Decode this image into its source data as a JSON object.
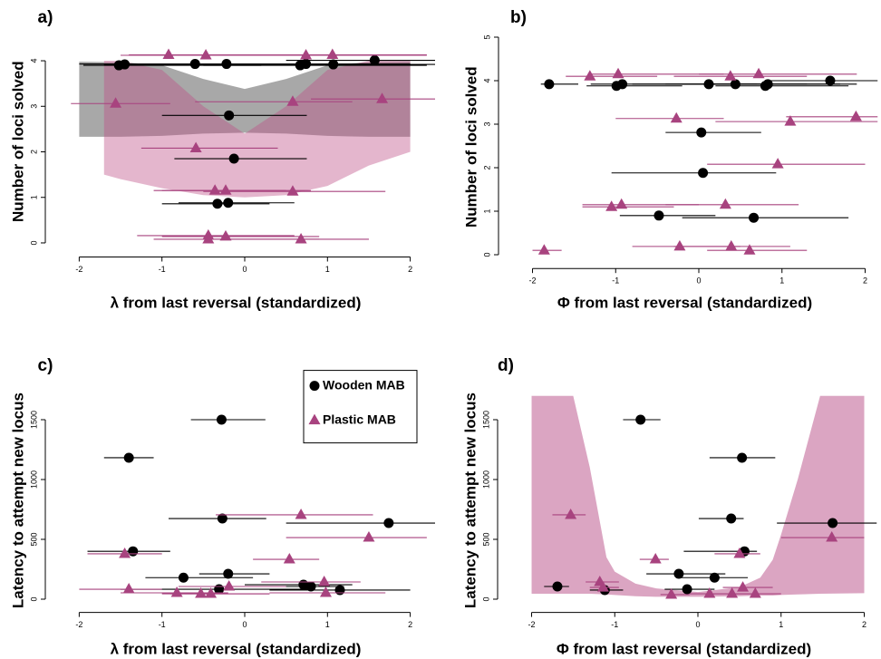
{
  "chart_data": [
    {
      "type": "scatter",
      "label": "a)",
      "xlabel": "λ from last reversal (standardized)",
      "ylabel": "Number of loci solved",
      "xlim": [
        -2.3,
        2.3
      ],
      "ylim": [
        -0.15,
        4.6
      ],
      "xticks": [
        -2,
        -1,
        0,
        1,
        2
      ],
      "yticks": [
        0,
        1,
        2,
        3,
        4
      ],
      "bands": [
        {
          "color": "rgba(110,110,110,0.6)",
          "x": [
            -2,
            -1.5,
            -1,
            -0.5,
            0,
            0.5,
            1,
            1.5,
            2
          ],
          "upper": [
            3.98,
            3.97,
            3.9,
            3.6,
            3.38,
            3.6,
            3.9,
            3.97,
            3.98
          ],
          "lower": [
            2.33,
            2.33,
            2.35,
            2.4,
            2.42,
            2.4,
            2.35,
            2.33,
            2.33
          ]
        },
        {
          "color": "rgba(190,80,135,0.42)",
          "x": [
            -1.7,
            -1.5,
            -1,
            -0.5,
            0,
            0.5,
            1,
            1.5,
            2
          ],
          "upper": [
            4.0,
            4.0,
            3.8,
            3.0,
            2.4,
            3.0,
            3.8,
            4.0,
            4.0
          ],
          "lower": [
            1.5,
            1.4,
            1.2,
            1.05,
            1.0,
            1.05,
            1.25,
            1.7,
            2.0
          ]
        }
      ],
      "series": [
        {
          "color": "#000000",
          "marker": "circle",
          "x": [
            -1.52,
            -1.45,
            -0.6,
            -0.22,
            0.67,
            0.74,
            1.07,
            1.57,
            -0.19,
            -0.13,
            -0.33,
            -0.2
          ],
          "values": [
            3.9,
            3.92,
            3.93,
            3.93,
            3.9,
            3.93,
            3.92,
            4.01,
            2.8,
            1.85,
            0.86,
            0.88
          ],
          "xmin": [
            -1.95,
            -1.7,
            -2.0,
            -1.3,
            -0.5,
            -0.3,
            0.2,
            0.5,
            -1.0,
            -0.85,
            -1.0,
            -0.8
          ],
          "xmax": [
            0.2,
            0.8,
            0.9,
            1.7,
            2.2,
            2.0,
            2.3,
            2.3,
            0.75,
            0.75,
            0.3,
            0.6
          ]
        },
        {
          "color": "#a8437f",
          "marker": "triangle",
          "x": [
            -0.92,
            -0.47,
            0.74,
            1.06,
            -1.56,
            0.58,
            1.66,
            -0.59,
            -0.36,
            -0.23,
            0.58,
            -0.44,
            -0.44,
            -0.23,
            0.68
          ],
          "values": [
            4.13,
            4.12,
            4.12,
            4.13,
            3.06,
            3.1,
            3.16,
            2.08,
            1.15,
            1.15,
            1.13,
            0.16,
            0.08,
            0.14,
            0.08
          ],
          "xmin": [
            -1.4,
            -1.5,
            -0.8,
            -0.3,
            -2.1,
            -0.6,
            0.8,
            -1.25,
            -1.1,
            -1.0,
            -0.5,
            -1.3,
            -1.1,
            -1.0,
            -0.4
          ],
          "xmax": [
            2.1,
            2.0,
            2.2,
            2.2,
            -0.9,
            1.3,
            2.3,
            0.4,
            0.5,
            0.8,
            1.7,
            0.6,
            0.9,
            0.9,
            1.5
          ]
        }
      ]
    },
    {
      "type": "scatter",
      "label": "b)",
      "xlabel": "Φ from last reversal (standardized)",
      "ylabel": "Number of loci solved",
      "xlim": [
        -2.3,
        2.18
      ],
      "ylim": [
        -0.15,
        5.1
      ],
      "xticks": [
        -2,
        -1,
        0,
        1,
        2
      ],
      "yticks": [
        0,
        1,
        2,
        3,
        4,
        5
      ],
      "series": [
        {
          "color": "#000000",
          "marker": "circle",
          "x": [
            -1.8,
            -0.99,
            -0.92,
            0.12,
            0.44,
            0.8,
            0.83,
            1.58,
            0.03,
            0.05,
            -0.48,
            0.66
          ],
          "values": [
            3.92,
            3.88,
            3.92,
            3.92,
            3.92,
            3.88,
            3.92,
            4.0,
            2.81,
            1.88,
            0.9,
            0.85
          ],
          "xmin": [
            -1.9,
            -1.35,
            -1.3,
            -0.8,
            -0.4,
            0.2,
            0.1,
            0.8,
            -0.4,
            -1.05,
            -0.95,
            -0.2
          ],
          "xmax": [
            -1.45,
            -0.2,
            0.7,
            1.3,
            1.7,
            1.8,
            1.9,
            2.15,
            0.75,
            0.93,
            0.2,
            1.8
          ]
        },
        {
          "color": "#a8437f",
          "marker": "triangle",
          "x": [
            -1.31,
            -0.97,
            0.38,
            0.72,
            -0.27,
            1.1,
            1.89,
            0.95,
            -1.05,
            -0.93,
            0.32,
            -1.86,
            -0.23,
            0.39,
            0.61
          ],
          "values": [
            4.1,
            4.15,
            4.1,
            4.15,
            3.13,
            3.06,
            3.17,
            2.08,
            1.1,
            1.15,
            1.15,
            0.1,
            0.19,
            0.19,
            0.1
          ],
          "xmin": [
            -1.6,
            -1.3,
            -0.3,
            0.0,
            -1.0,
            0.2,
            1.05,
            0.1,
            -1.4,
            -1.4,
            -0.4,
            -2.0,
            -0.8,
            -0.3,
            0.1
          ],
          "xmax": [
            -0.5,
            0.3,
            1.3,
            1.9,
            0.3,
            2.15,
            2.15,
            2.0,
            -0.3,
            0.0,
            1.2,
            -1.65,
            0.5,
            1.1,
            1.3
          ]
        }
      ]
    },
    {
      "type": "scatter",
      "label": "c)",
      "xlabel": "λ from last reversal (standardized)",
      "ylabel": "Latency to attempt new locus",
      "xlim": [
        -2.3,
        2.3
      ],
      "ylim": [
        -50,
        1700
      ],
      "xticks": [
        -2,
        -1,
        0,
        1,
        2
      ],
      "yticks": [
        0,
        500,
        1000,
        1500
      ],
      "legend": "topright",
      "series": [
        {
          "name": "Wooden MAB",
          "color": "#000000",
          "marker": "circle",
          "x": [
            -0.28,
            -1.4,
            -0.27,
            1.74,
            -1.35,
            -0.74,
            -0.2,
            -0.31,
            0.71,
            0.8,
            1.15
          ],
          "values": [
            1500,
            1182,
            674,
            636,
            400,
            180,
            212,
            83,
            121,
            106,
            76
          ],
          "xmin": [
            -0.65,
            -1.7,
            -0.92,
            0.5,
            -1.9,
            -1.2,
            -0.55,
            -1.5,
            0.0,
            -0.05,
            0.3
          ],
          "xmax": [
            0.25,
            -1.1,
            0.26,
            2.3,
            -0.9,
            0.1,
            0.3,
            0.8,
            1.3,
            1.2,
            2.0
          ]
        },
        {
          "name": "Plastic MAB",
          "color": "#a8437f",
          "marker": "triangle",
          "x": [
            0.68,
            1.5,
            0.54,
            -1.45,
            -1.4,
            -0.82,
            -0.53,
            -0.41,
            -0.19,
            0.96,
            0.98
          ],
          "values": [
            705,
            515,
            333,
            379,
            83,
            53,
            45,
            45,
            106,
            144,
            53
          ],
          "xmin": [
            -0.35,
            0.5,
            0.1,
            -1.9,
            -2.0,
            -1.5,
            -1.0,
            -0.9,
            -0.8,
            0.2,
            0.3
          ],
          "xmax": [
            1.55,
            2.2,
            0.9,
            -1.0,
            -1.0,
            -0.2,
            0.3,
            0.3,
            0.5,
            1.4,
            1.7
          ]
        }
      ]
    },
    {
      "type": "scatter",
      "label": "d)",
      "xlabel": "Φ from last reversal (standardized)",
      "ylabel": "Latency to attempt new locus",
      "xlim": [
        -2.3,
        2.18
      ],
      "ylim": [
        -50,
        1700
      ],
      "xticks": [
        -2,
        -1,
        0,
        1,
        2
      ],
      "yticks": [
        0,
        500,
        1000,
        1500
      ],
      "bands": [
        {
          "color": "#dba5c2",
          "x": [
            -2,
            -1.5,
            -1.3,
            -1.1,
            -1,
            -0.75,
            -0.5,
            0,
            0.5,
            0.75,
            0.9,
            1,
            1.2,
            1.47,
            2
          ],
          "upper": [
            1700,
            1700,
            1100,
            350,
            230,
            130,
            90,
            60,
            100,
            180,
            330,
            540,
            1000,
            1700,
            1700
          ],
          "lower": [
            45,
            45,
            45,
            40,
            35,
            25,
            20,
            20,
            25,
            30,
            30,
            35,
            40,
            45,
            50
          ]
        }
      ],
      "series": [
        {
          "color": "#000000",
          "marker": "circle",
          "x": [
            -0.69,
            0.53,
            0.4,
            1.62,
            0.56,
            -0.23,
            0.2,
            -0.13,
            -1.69,
            -1.12
          ],
          "values": [
            1500,
            1182,
            674,
            636,
            400,
            212,
            180,
            83,
            106,
            76
          ],
          "xmin": [
            -0.9,
            0.14,
            0.01,
            0.95,
            -0.17,
            -0.62,
            -0.2,
            -0.4,
            -1.85,
            -1.3
          ],
          "xmax": [
            -0.45,
            0.93,
            0.55,
            2.15,
            0.71,
            0.33,
            0.6,
            0.2,
            -1.55,
            -0.9
          ]
        },
        {
          "color": "#a8437f",
          "marker": "triangle",
          "x": [
            -1.53,
            1.61,
            -0.51,
            0.5,
            -1.18,
            -1.14,
            -0.32,
            0.14,
            0.41,
            0.69,
            0.54
          ],
          "values": [
            705,
            515,
            333,
            379,
            144,
            98,
            38,
            45,
            45,
            45,
            98
          ],
          "xmin": [
            -1.75,
            1.0,
            -0.7,
            0.2,
            -1.35,
            -1.3,
            -0.45,
            -0.1,
            0.1,
            0.4,
            0.3
          ],
          "xmax": [
            -1.35,
            2.0,
            -0.35,
            0.75,
            -0.95,
            -0.95,
            -0.1,
            0.4,
            0.7,
            1.0,
            0.9
          ]
        }
      ]
    }
  ]
}
